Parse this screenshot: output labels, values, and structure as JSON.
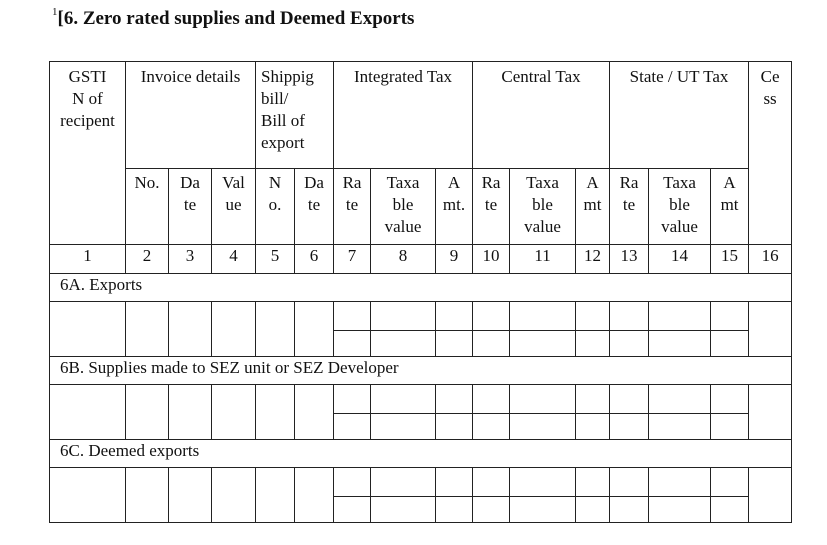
{
  "document": {
    "footnote_mark": "1",
    "title": "[6. Zero rated supplies and Deemed Exports"
  },
  "table": {
    "group_headers": {
      "gstin": [
        "GSTI",
        "N of",
        "recipent"
      ],
      "invoice": "Invoice details",
      "shipping": [
        "Shippig",
        "bill/",
        "Bill of",
        "export"
      ],
      "integrated": "Integrated Tax",
      "central": "Central Tax",
      "state": "State / UT Tax",
      "cess": [
        "Ce",
        "ss"
      ]
    },
    "sub_headers": {
      "inv_no": "No.",
      "inv_date": [
        "Da",
        "te"
      ],
      "inv_value": [
        "Val",
        "ue"
      ],
      "ship_no": [
        "N",
        "o."
      ],
      "ship_date": [
        "Da",
        "te"
      ],
      "igst_rate": [
        "Ra",
        "te"
      ],
      "igst_taxable": [
        "Taxa",
        "ble",
        "value"
      ],
      "igst_amt": [
        "A",
        "mt."
      ],
      "cgst_rate": [
        "Ra",
        "te"
      ],
      "cgst_taxable": [
        "Taxa",
        "ble",
        "value"
      ],
      "cgst_amt": [
        "A",
        "mt"
      ],
      "sgst_rate": [
        "Ra",
        "te"
      ],
      "sgst_taxable": [
        "Taxa",
        "ble",
        "value"
      ],
      "sgst_amt": [
        "A",
        "mt"
      ]
    },
    "column_numbers": [
      "1",
      "2",
      "3",
      "4",
      "5",
      "6",
      "7",
      "8",
      "9",
      "10",
      "11",
      "12",
      "13",
      "14",
      "15",
      "16"
    ],
    "sections": [
      {
        "label": "6A. Exports"
      },
      {
        "label": "6B. Supplies made to SEZ unit or SEZ Developer"
      },
      {
        "label": "6C. Deemed exports"
      }
    ]
  }
}
